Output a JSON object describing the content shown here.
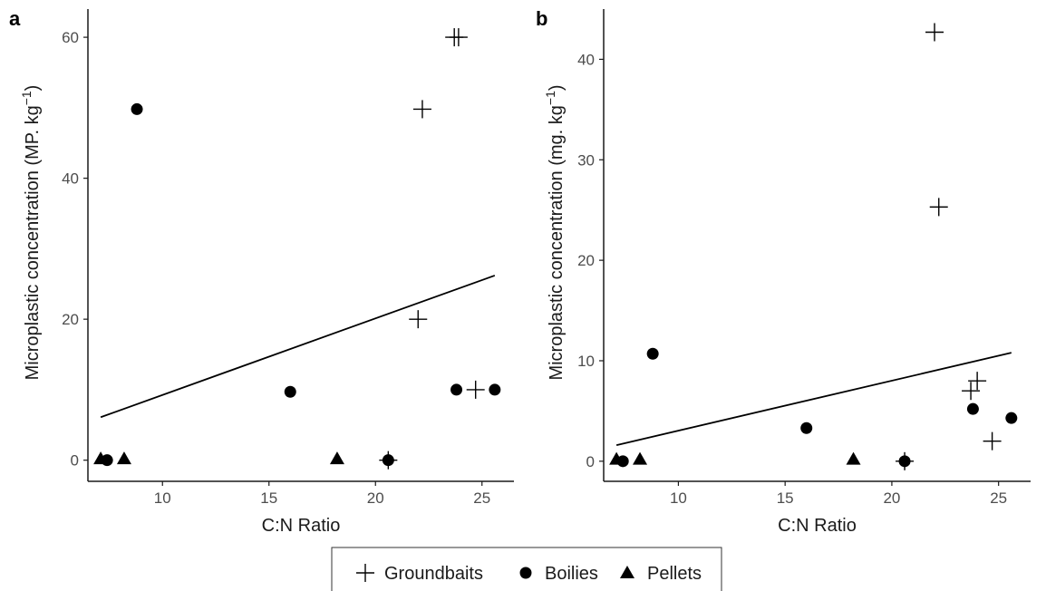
{
  "legend": {
    "items": [
      {
        "label": "Groundbaits",
        "marker": "plus"
      },
      {
        "label": "Boilies",
        "marker": "circle"
      },
      {
        "label": "Pellets",
        "marker": "triangle"
      }
    ]
  },
  "colors": {
    "marker": "#000000",
    "axis": "#1a1a1a",
    "tick_text": "#4d4d4d"
  },
  "chart_data": [
    {
      "panel": "a",
      "type": "scatter",
      "xlabel": "C:N Ratio",
      "ylabel": "Microplastic concentration (MP. kg",
      "ylabel_sup": "−1",
      "ylabel_tail": ")",
      "xlim": [
        6.5,
        26.5
      ],
      "ylim": [
        -3,
        64
      ],
      "x_ticks": [
        10,
        15,
        20,
        25
      ],
      "y_ticks": [
        0,
        20,
        40,
        60
      ],
      "grid": false,
      "series": [
        {
          "name": "Groundbaits",
          "marker": "plus",
          "points": [
            [
              23.7,
              60
            ],
            [
              23.9,
              60
            ],
            [
              22.2,
              49.8
            ],
            [
              22.0,
              20
            ],
            [
              24.7,
              10
            ],
            [
              20.6,
              0
            ]
          ]
        },
        {
          "name": "Boilies",
          "marker": "circle",
          "points": [
            [
              8.8,
              49.8
            ],
            [
              16.0,
              9.7
            ],
            [
              23.8,
              10
            ],
            [
              25.6,
              10
            ],
            [
              20.6,
              0
            ],
            [
              7.4,
              0
            ]
          ]
        },
        {
          "name": "Pellets",
          "marker": "triangle",
          "points": [
            [
              7.1,
              0.2
            ],
            [
              8.2,
              0.2
            ],
            [
              18.2,
              0.2
            ]
          ]
        }
      ],
      "fit_line": {
        "x": [
          7.1,
          25.6
        ],
        "y": [
          6.1,
          26.2
        ]
      }
    },
    {
      "panel": "b",
      "type": "scatter",
      "xlabel": "C:N Ratio",
      "ylabel": "Microplastic concentration (mg. kg",
      "ylabel_sup": "−1",
      "ylabel_tail": ")",
      "xlim": [
        6.5,
        26.5
      ],
      "ylim": [
        -2,
        45
      ],
      "x_ticks": [
        10,
        15,
        20,
        25
      ],
      "y_ticks": [
        0,
        10,
        20,
        30,
        40
      ],
      "grid": false,
      "series": [
        {
          "name": "Groundbaits",
          "marker": "plus",
          "points": [
            [
              22.0,
              42.7
            ],
            [
              22.2,
              25.3
            ],
            [
              23.7,
              7.0
            ],
            [
              24.0,
              8.0
            ],
            [
              24.7,
              2.0
            ],
            [
              20.6,
              0
            ]
          ]
        },
        {
          "name": "Boilies",
          "marker": "circle",
          "points": [
            [
              8.8,
              10.7
            ],
            [
              16.0,
              3.3
            ],
            [
              23.8,
              5.2
            ],
            [
              25.6,
              4.3
            ],
            [
              20.6,
              0
            ],
            [
              7.4,
              0
            ]
          ]
        },
        {
          "name": "Pellets",
          "marker": "triangle",
          "points": [
            [
              7.1,
              0.2
            ],
            [
              8.2,
              0.2
            ],
            [
              18.2,
              0.2
            ]
          ]
        }
      ],
      "fit_line": {
        "x": [
          7.1,
          25.6
        ],
        "y": [
          1.6,
          10.8
        ]
      }
    }
  ]
}
